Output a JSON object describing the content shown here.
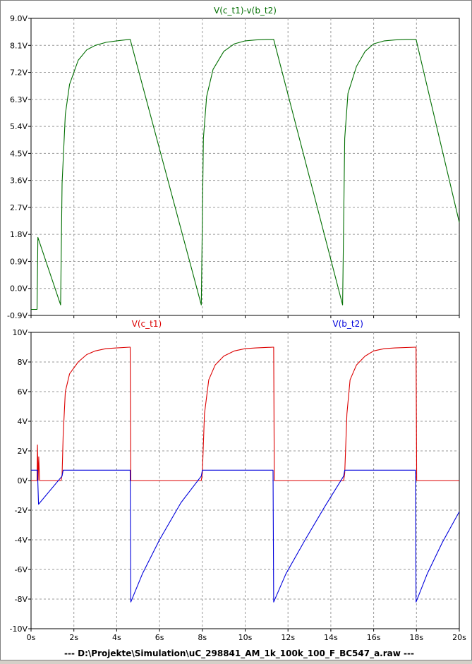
{
  "footer_filename": "---  D:\\Projekte\\Simulation\\uC_298841_AM_1k_100k_100_F_BC547_a.raw  ---",
  "colors": {
    "green": "#006e00",
    "red": "#dc0000",
    "blue": "#0000dc",
    "grid": "#9a9a9a",
    "text": "#000000"
  },
  "chart_data": [
    {
      "type": "line",
      "title": "V(c_t1)-v(b_t2)",
      "xlim": [
        0,
        20
      ],
      "ylim": [
        -0.9,
        9.0
      ],
      "y_ticks": [
        "9.0V",
        "8.1V",
        "7.2V",
        "6.3V",
        "5.4V",
        "4.5V",
        "3.6V",
        "2.7V",
        "1.8V",
        "0.9V",
        "0.0V",
        "-0.9V"
      ],
      "x_ticks": [],
      "grid": true,
      "series": [
        {
          "name": "V(c_t1)-v(b_t2)",
          "color": "#006e00",
          "x": [
            0,
            0.28,
            0.32,
            1.38,
            1.45,
            1.6,
            1.8,
            2.2,
            2.6,
            3.0,
            3.5,
            4.0,
            4.6,
            4.63,
            7.95,
            8.05,
            8.2,
            8.5,
            9.0,
            9.5,
            10.0,
            10.5,
            11.0,
            11.3,
            11.33,
            14.55,
            14.65,
            14.8,
            15.2,
            15.6,
            16.0,
            16.5,
            17.0,
            17.5,
            17.95,
            17.98,
            20.0
          ],
          "y": [
            -0.7,
            -0.7,
            1.7,
            -0.55,
            3.5,
            5.8,
            6.8,
            7.6,
            7.95,
            8.1,
            8.2,
            8.25,
            8.3,
            8.3,
            -0.55,
            5.0,
            6.4,
            7.3,
            7.9,
            8.15,
            8.25,
            8.28,
            8.3,
            8.3,
            8.3,
            -0.55,
            5.0,
            6.5,
            7.4,
            7.9,
            8.15,
            8.25,
            8.28,
            8.3,
            8.3,
            8.3,
            2.2
          ]
        }
      ]
    },
    {
      "type": "line",
      "legend": [
        "V(c_t1)",
        "V(b_t2)"
      ],
      "xlim": [
        0,
        20
      ],
      "ylim": [
        -10,
        10
      ],
      "y_ticks": [
        "10V",
        "8V",
        "6V",
        "4V",
        "2V",
        "0V",
        "-2V",
        "-4V",
        "-6V",
        "-8V",
        "-10V"
      ],
      "x_ticks": [
        "0s",
        "2s",
        "4s",
        "6s",
        "8s",
        "10s",
        "12s",
        "14s",
        "16s",
        "18s",
        "20s"
      ],
      "grid": true,
      "series": [
        {
          "name": "V(c_t1)",
          "color": "#dc0000",
          "x": [
            0,
            0.28,
            0.3,
            0.33,
            0.36,
            0.4,
            1.4,
            1.45,
            1.5,
            1.6,
            1.8,
            2.2,
            2.6,
            3.0,
            3.5,
            4.0,
            4.6,
            4.63,
            4.66,
            7.95,
            8.0,
            8.1,
            8.3,
            8.6,
            9.0,
            9.5,
            10.0,
            10.5,
            11.3,
            11.33,
            11.36,
            14.6,
            14.65,
            14.75,
            14.9,
            15.2,
            15.6,
            16.0,
            16.5,
            17.0,
            17.95,
            17.98,
            18.01,
            20.0
          ],
          "y": [
            0.0,
            0.0,
            2.4,
            0.0,
            1.6,
            0.0,
            0.0,
            0.4,
            3.0,
            6.0,
            7.2,
            8.0,
            8.5,
            8.75,
            8.9,
            8.95,
            9.0,
            9.0,
            0.0,
            0.0,
            0.5,
            4.5,
            6.8,
            7.8,
            8.4,
            8.75,
            8.9,
            8.95,
            9.0,
            9.0,
            0.0,
            0.0,
            0.5,
            4.5,
            6.8,
            7.8,
            8.4,
            8.75,
            8.9,
            8.95,
            9.0,
            9.0,
            0.0,
            0.0
          ]
        },
        {
          "name": "V(b_t2)",
          "color": "#0000dc",
          "x": [
            0,
            0.3,
            0.35,
            1.45,
            1.5,
            4.63,
            4.66,
            5.2,
            6.0,
            7.0,
            7.95,
            8.0,
            11.3,
            11.33,
            11.9,
            12.8,
            13.7,
            14.6,
            14.65,
            17.95,
            17.98,
            18.5,
            19.2,
            20.0
          ],
          "y": [
            0.7,
            0.7,
            -1.6,
            0.3,
            0.7,
            0.7,
            -8.2,
            -6.3,
            -4.0,
            -1.5,
            0.3,
            0.7,
            0.7,
            -8.2,
            -6.3,
            -4.0,
            -1.8,
            0.3,
            0.7,
            0.7,
            -8.2,
            -6.3,
            -4.2,
            -2.1
          ]
        }
      ]
    }
  ]
}
